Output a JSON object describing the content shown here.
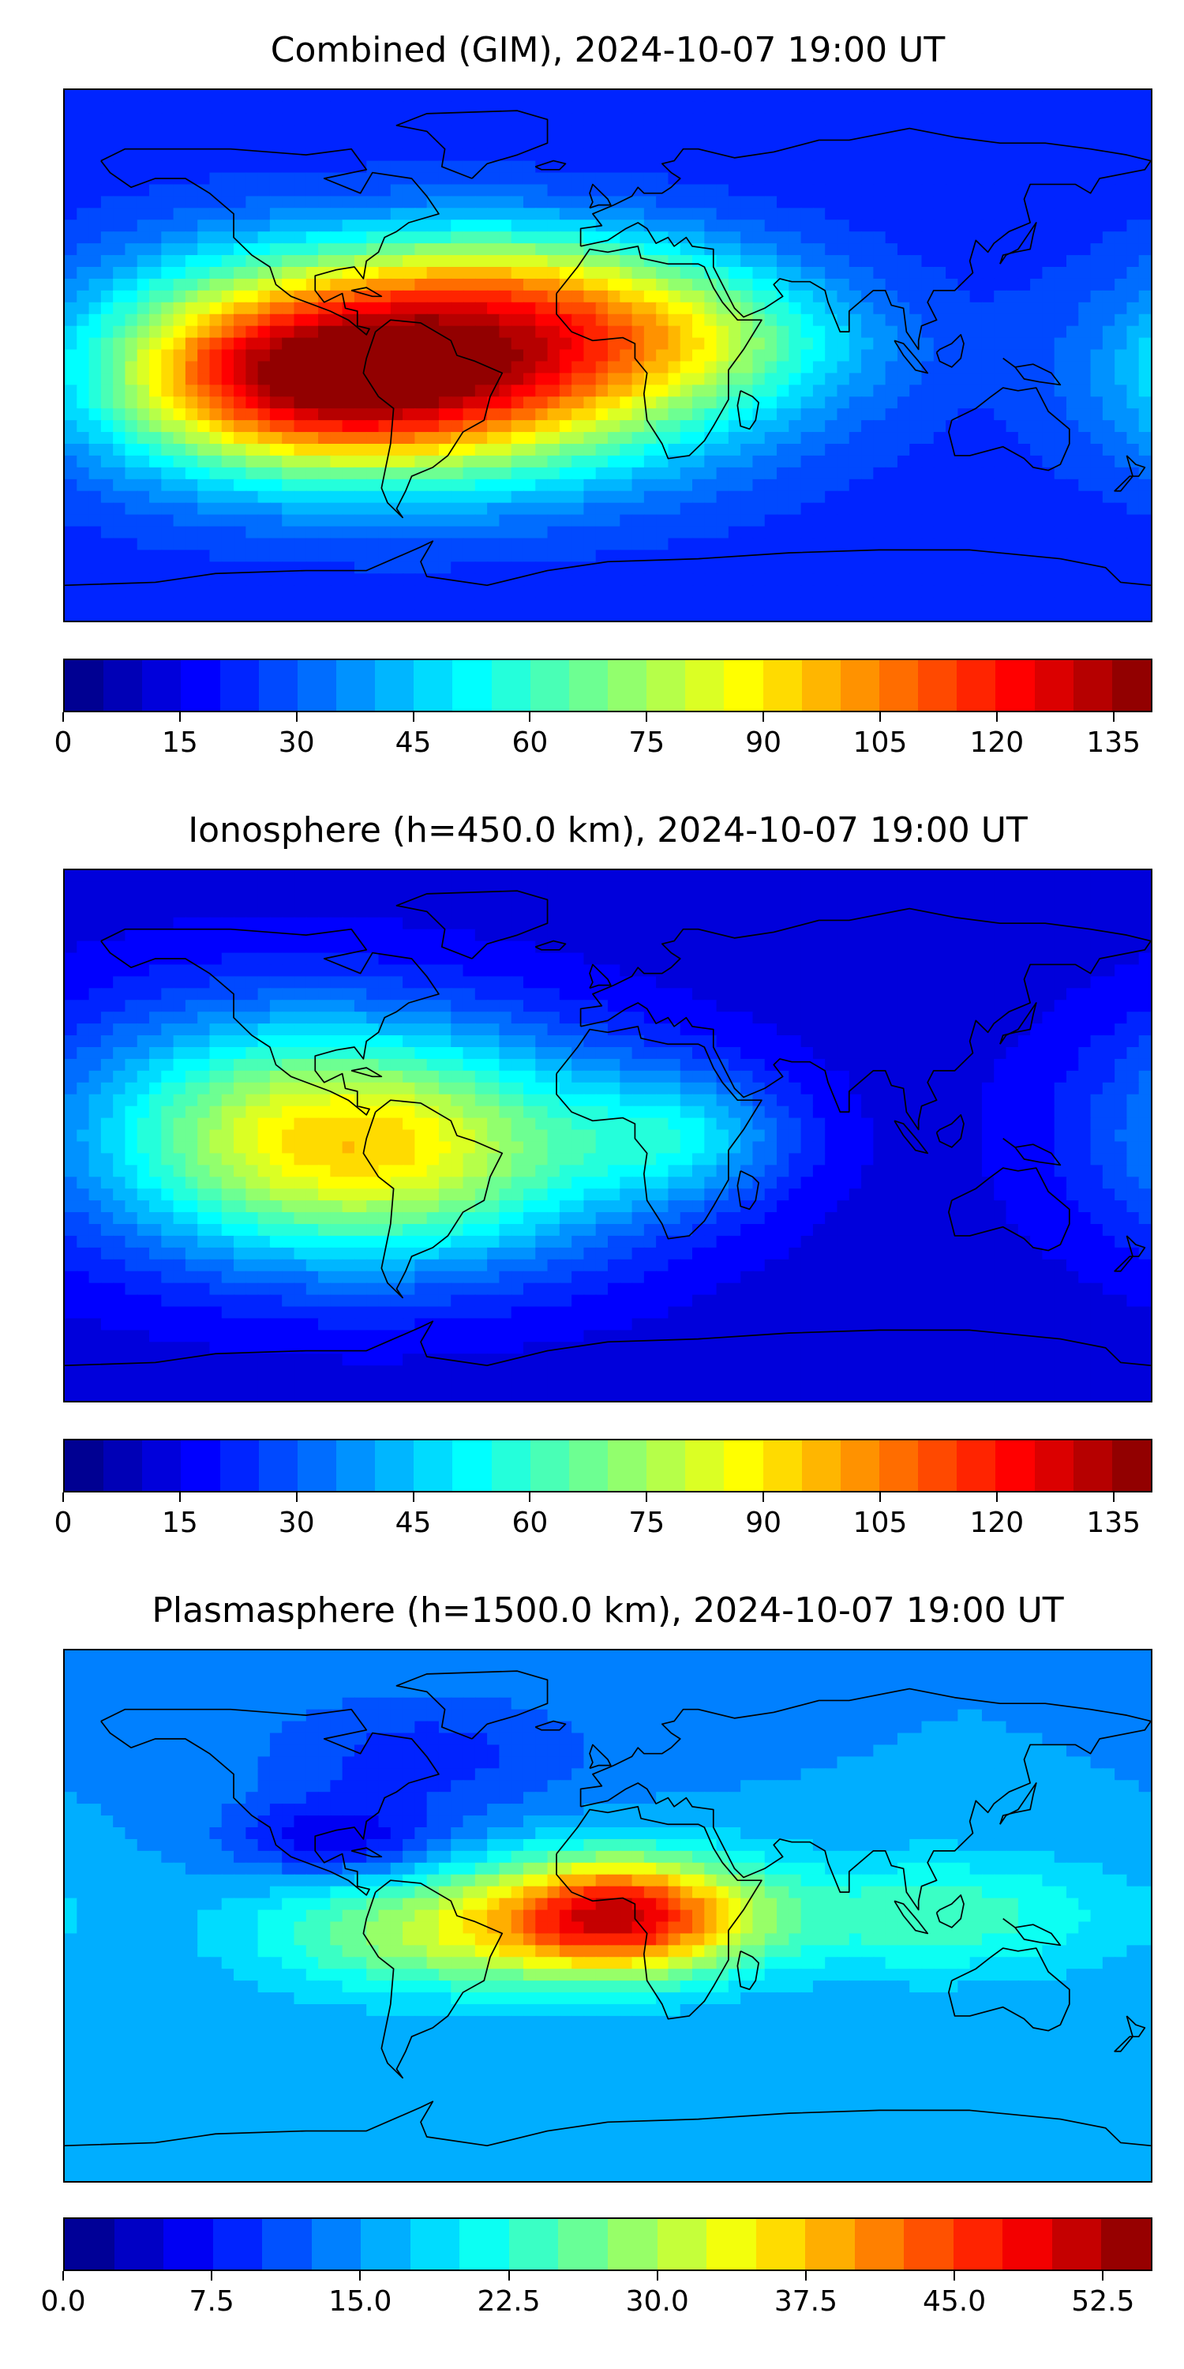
{
  "panels": [
    {
      "title": "Combined (GIM), 2024-10-07 19:00 UT",
      "variable": "TEC",
      "colorbar": {
        "min": 0,
        "max": 140,
        "levels": 28,
        "tick_labels": [
          "0",
          "15",
          "30",
          "45",
          "60",
          "75",
          "90",
          "105",
          "120",
          "135"
        ],
        "tick_values": [
          0,
          15,
          30,
          45,
          60,
          75,
          90,
          105,
          120,
          135
        ]
      },
      "field": {
        "background": 22,
        "blobs": [
          {
            "lon": -60,
            "lat": -5,
            "rl": 65,
            "rt": 25,
            "a": 105
          },
          {
            "lon": -100,
            "lat": -10,
            "rl": 40,
            "rt": 20,
            "a": 30
          },
          {
            "lon": -30,
            "lat": 25,
            "rl": 50,
            "rt": 15,
            "a": 30
          },
          {
            "lon": 30,
            "lat": 5,
            "rl": 40,
            "rt": 15,
            "a": 25
          },
          {
            "lon": -130,
            "lat": 0,
            "rl": 30,
            "rt": 25,
            "a": 15
          }
        ]
      }
    },
    {
      "title": "Ionosphere  (h=450.0 km), 2024-10-07 19:00 UT",
      "variable": "TEC",
      "colorbar": {
        "min": 0,
        "max": 140,
        "levels": 28,
        "tick_labels": [
          "0",
          "15",
          "30",
          "45",
          "60",
          "75",
          "90",
          "105",
          "120",
          "135"
        ],
        "tick_values": [
          0,
          15,
          30,
          45,
          60,
          75,
          90,
          105,
          120,
          135
        ]
      },
      "field": {
        "background": 12,
        "blobs": [
          {
            "lon": -75,
            "lat": -5,
            "rl": 60,
            "rt": 28,
            "a": 70
          },
          {
            "lon": -120,
            "lat": 10,
            "rl": 50,
            "rt": 30,
            "a": 20
          },
          {
            "lon": 25,
            "lat": 0,
            "rl": 25,
            "rt": 15,
            "a": 25
          }
        ]
      }
    },
    {
      "title": "Plasmasphere (h=1500.0 km), 2024-10-07 19:00 UT",
      "variable": "TEC",
      "colorbar": {
        "min": 0,
        "max": 55,
        "levels": 22,
        "tick_labels": [
          "0.0",
          "7.5",
          "15.0",
          "22.5",
          "30.0",
          "37.5",
          "45.0",
          "52.5"
        ],
        "tick_values": [
          0,
          7.5,
          15,
          22.5,
          30,
          37.5,
          45,
          52.5
        ]
      },
      "field": {
        "background": 15,
        "blobs": [
          {
            "lon": 5,
            "lat": 0,
            "rl": 30,
            "rt": 14,
            "a": 33
          },
          {
            "lon": -60,
            "lat": -5,
            "rl": 40,
            "rt": 15,
            "a": 14
          },
          {
            "lon": 110,
            "lat": 0,
            "rl": 45,
            "rt": 15,
            "a": 9
          },
          {
            "lon": -90,
            "lat": 25,
            "rl": 25,
            "rt": 10,
            "a": -10
          },
          {
            "lon": -60,
            "lat": 55,
            "rl": 40,
            "rt": 15,
            "a": -6
          }
        ]
      }
    }
  ],
  "colormap": "jet",
  "projection": "equirectangular",
  "map_extent": {
    "lon": [
      -180,
      180
    ],
    "lat": [
      -90,
      90
    ]
  },
  "coastline_color": "#000000"
}
